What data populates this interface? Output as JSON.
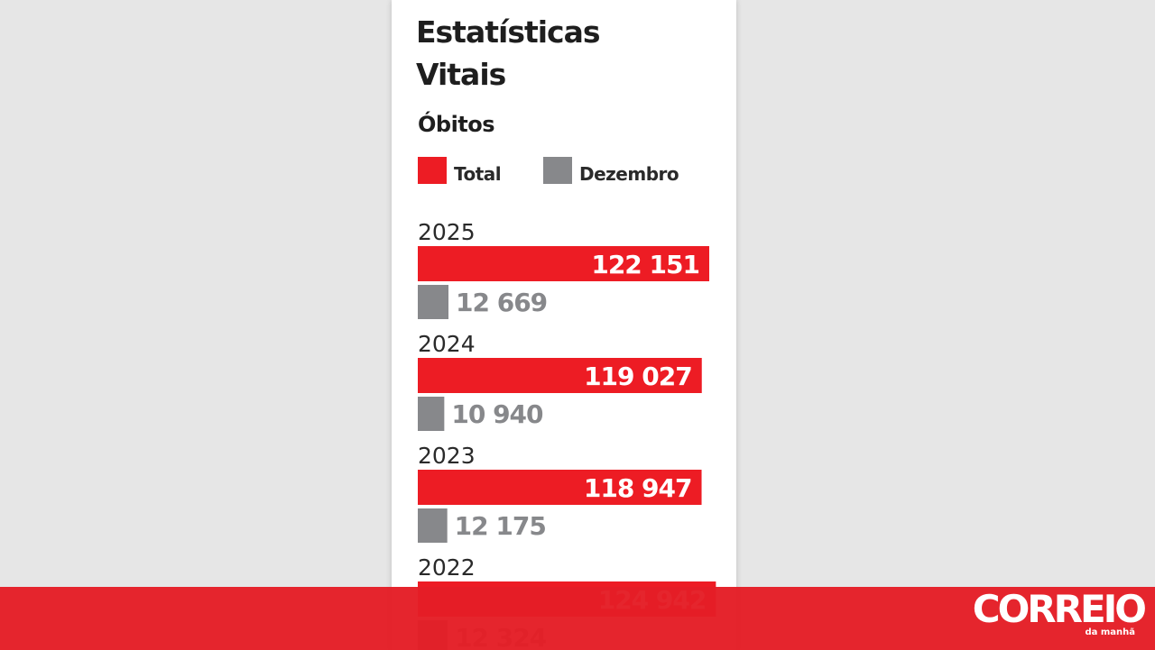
{
  "title_line1": "Estatísticas",
  "title_line2": "Vitais",
  "subtitle": "Óbitos",
  "legend": {
    "total_label": "Total",
    "dezembro_label": "Dezembro"
  },
  "colors": {
    "total": "#ed1c24",
    "dezembro": "#87888b",
    "total_value_text": "#ffffff",
    "background": "#e6e6e6",
    "bottom_bar": "#e41e26"
  },
  "logo": {
    "name": "CORREIO",
    "sub": "da manhã"
  },
  "chart_data": {
    "type": "bar",
    "orientation": "horizontal",
    "categories": [
      "2025",
      "2024",
      "2023",
      "2022"
    ],
    "series": [
      {
        "name": "Total",
        "values": [
          122151,
          119027,
          118947,
          124942
        ],
        "labels": [
          "122 151",
          "119 027",
          "118 947",
          "124 942"
        ]
      },
      {
        "name": "Dezembro",
        "values": [
          12669,
          10940,
          12175,
          12324
        ],
        "labels": [
          "12 669",
          "10 940",
          "12 175",
          "12 324"
        ]
      }
    ],
    "grid": false,
    "legend_position": "top-left"
  }
}
